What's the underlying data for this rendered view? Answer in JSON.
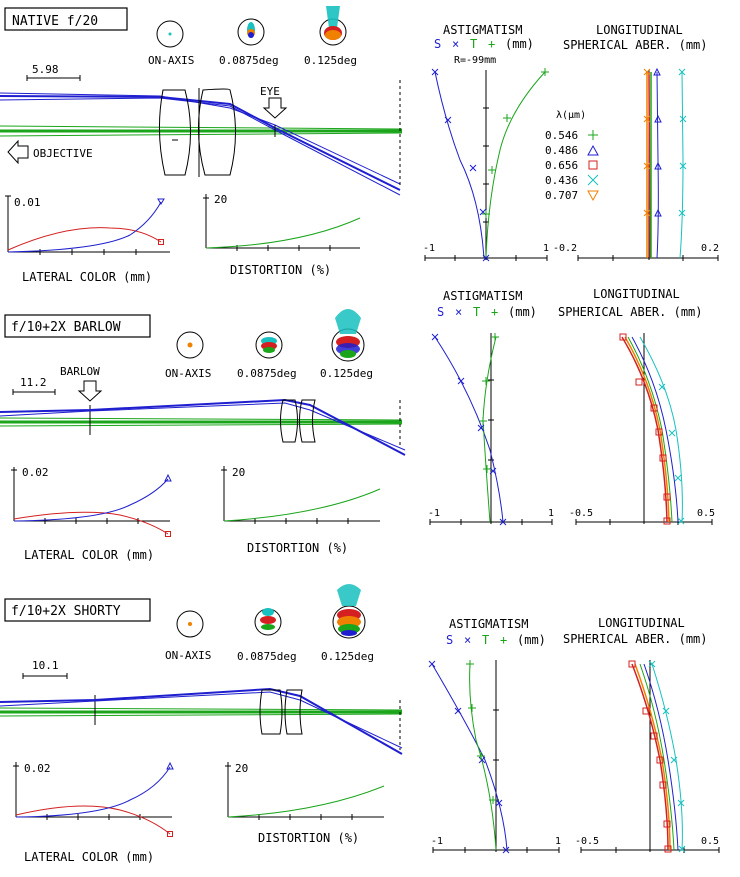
{
  "colors": {
    "blue": "#1f1fcf",
    "green": "#1aa51a",
    "red": "#d42020",
    "cyan": "#18c0c0",
    "orange": "#f08000",
    "black": "#000000"
  },
  "sections": [
    {
      "title": "NATIVE f/20",
      "spots": [
        "ON-AXIS",
        "0.0875deg",
        "0.125deg"
      ],
      "scale_label": "5.98",
      "extra_labels": [
        "EYE",
        "OBJECTIVE"
      ],
      "lateral": {
        "ymax": "0.01",
        "label": "LATERAL COLOR (mm)"
      },
      "distortion": {
        "ymax": "20",
        "label": "DISTORTION (%)"
      },
      "astig": {
        "title": "ASTIGMATISM",
        "legend": [
          "S",
          "×",
          "T",
          "+",
          "(mm)"
        ],
        "extra": "R=-99mm",
        "xmin": "-1",
        "xmax": "1"
      },
      "lsa": {
        "title1": "LONGITUDINAL",
        "title2": "SPHERICAL ABER. (mm)",
        "xmin": "-0.2",
        "xmax": "0.2"
      },
      "wavelengths": {
        "header": "λ(μm)",
        "items": [
          "0.546",
          "0.486",
          "0.656",
          "0.436",
          "0.707"
        ]
      }
    },
    {
      "title": "f/10+2X BARLOW",
      "spots": [
        "ON-AXIS",
        "0.0875deg",
        "0.125deg"
      ],
      "scale_label": "11.2",
      "extra_labels": [
        "BARLOW"
      ],
      "lateral": {
        "ymax": "0.02",
        "label": "LATERAL COLOR (mm)"
      },
      "distortion": {
        "ymax": "20",
        "label": "DISTORTION (%)"
      },
      "astig": {
        "title": "ASTIGMATISM",
        "legend": [
          "S",
          "×",
          "T",
          "+",
          "(mm)"
        ],
        "xmin": "-1",
        "xmax": "1"
      },
      "lsa": {
        "title1": "LONGITUDINAL",
        "title2": "SPHERICAL ABER. (mm)",
        "xmin": "-0.5",
        "xmax": "0.5"
      }
    },
    {
      "title": "f/10+2X SHORTY",
      "spots": [
        "ON-AXIS",
        "0.0875deg",
        "0.125deg"
      ],
      "scale_label": "10.1",
      "extra_labels": [],
      "lateral": {
        "ymax": "0.02",
        "label": "LATERAL COLOR (mm)"
      },
      "distortion": {
        "ymax": "20",
        "label": "DISTORTION (%)"
      },
      "astig": {
        "title": "ASTIGMATISM",
        "legend": [
          "S",
          "×",
          "T",
          "+",
          "(mm)"
        ],
        "xmin": "-1",
        "xmax": "1"
      },
      "lsa": {
        "title1": "LONGITUDINAL",
        "title2": "SPHERICAL ABER. (mm)",
        "xmin": "-0.5",
        "xmax": "0.5"
      }
    }
  ]
}
